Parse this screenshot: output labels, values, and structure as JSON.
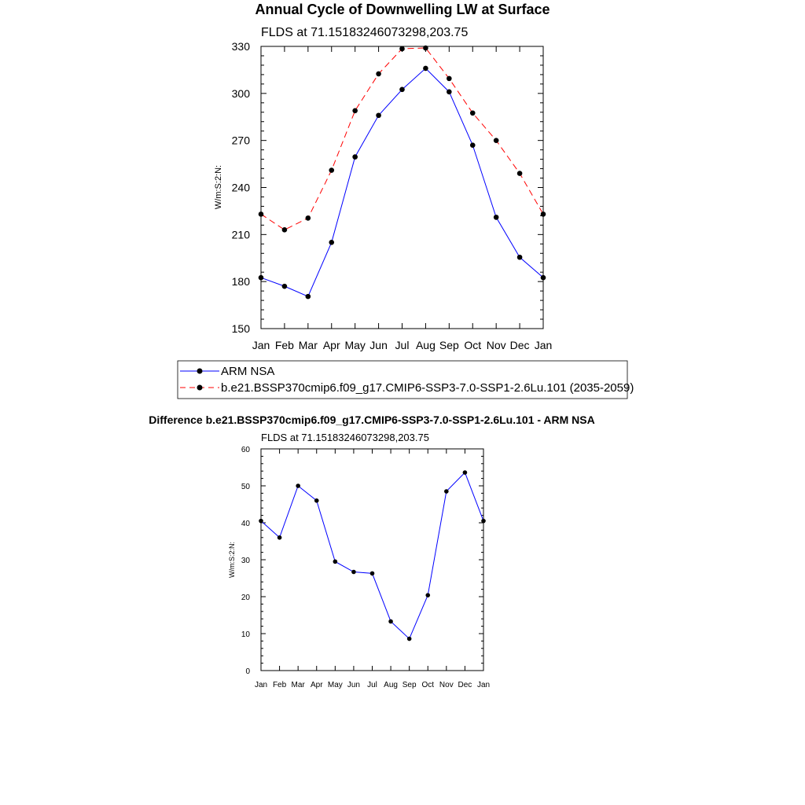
{
  "chart_data": [
    {
      "type": "line",
      "title": "Annual Cycle of Downwelling LW at Surface",
      "subtitle": "FLDS at 71.15183246073298,203.75",
      "xlabel": "",
      "ylabel": "W/m:S:2:N:",
      "categories": [
        "Jan",
        "Feb",
        "Mar",
        "Apr",
        "May",
        "Jun",
        "Jul",
        "Aug",
        "Sep",
        "Oct",
        "Nov",
        "Dec",
        "Jan"
      ],
      "ylim": [
        150,
        330
      ],
      "yticks": [
        150,
        180,
        210,
        240,
        270,
        300,
        330
      ],
      "legend_position": "bottom",
      "series": [
        {
          "name": "ARM NSA",
          "color": "#0000ff",
          "dash": "solid",
          "values": [
            182.5,
            177,
            170.5,
            205,
            259.5,
            286,
            302.5,
            316,
            301,
            267,
            221,
            195.5,
            182.5
          ]
        },
        {
          "name": "b.e21.BSSP370cmip6.f09_g17.CMIP6-SSP3-7.0-SSP1-2.6Lu.101 (2035-2059)",
          "color": "#ff0000",
          "dash": "dashed",
          "values": [
            223,
            213,
            220.5,
            251,
            289,
            312.5,
            328.5,
            329,
            309.5,
            287.5,
            270,
            249,
            223
          ]
        }
      ]
    },
    {
      "type": "line",
      "title": "Difference b.e21.BSSP370cmip6.f09_g17.CMIP6-SSP3-7.0-SSP1-2.6Lu.101 - ARM NSA",
      "subtitle": "FLDS at 71.15183246073298,203.75",
      "xlabel": "",
      "ylabel": "W/m:S:2:N:",
      "categories": [
        "Jan",
        "Feb",
        "Mar",
        "Apr",
        "May",
        "Jun",
        "Jul",
        "Aug",
        "Sep",
        "Oct",
        "Nov",
        "Dec",
        "Jan"
      ],
      "ylim": [
        0,
        60
      ],
      "yticks": [
        0,
        10,
        20,
        30,
        40,
        50,
        60
      ],
      "series": [
        {
          "name": "Difference",
          "color": "#0000ff",
          "dash": "solid",
          "values": [
            40.5,
            36,
            50,
            46,
            29.5,
            26.7,
            26.3,
            13.3,
            8.6,
            20.4,
            48.5,
            53.6,
            40.5
          ]
        }
      ]
    }
  ]
}
